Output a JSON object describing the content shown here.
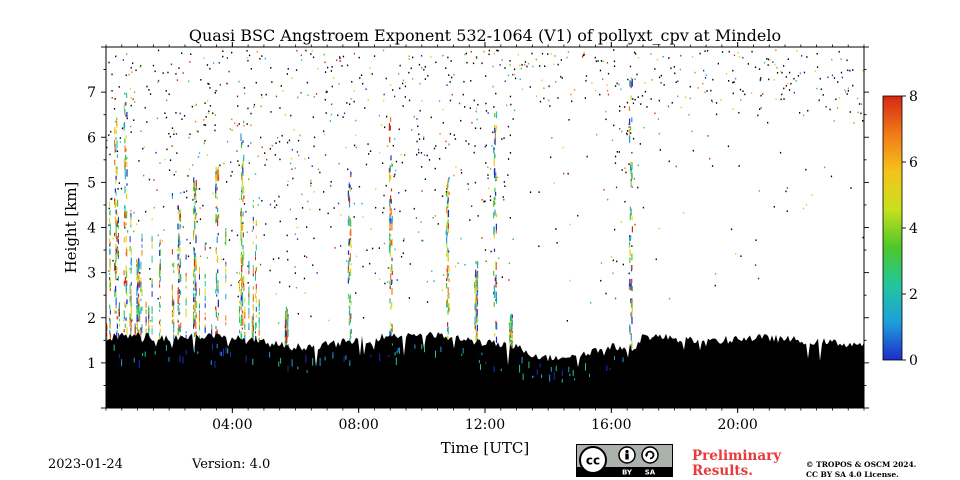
{
  "chart_data": {
    "type": "heatmap",
    "title": "Quasi BSC Angstroem Exponent 532-1064 (V1) of pollyxt_cpv at Mindelo",
    "xlabel": "Time [UTC]",
    "ylabel": "Height [km]",
    "xlim": [
      0,
      24
    ],
    "ylim": [
      0,
      8
    ],
    "x_ticks": [
      4,
      8,
      12,
      16,
      20
    ],
    "x_tick_labels": [
      "04:00",
      "08:00",
      "12:00",
      "16:00",
      "20:00"
    ],
    "y_ticks": [
      1,
      2,
      3,
      4,
      5,
      6,
      7
    ],
    "y_tick_labels": [
      "1",
      "2",
      "3",
      "4",
      "5",
      "6",
      "7"
    ],
    "colorbar": {
      "min": 0,
      "max": 8,
      "ticks": [
        0,
        2,
        4,
        6,
        8
      ],
      "tick_labels": [
        "0",
        "2",
        "4",
        "6",
        "8"
      ],
      "colormap": [
        "#1f2bc8",
        "#1e9fdc",
        "#22c69a",
        "#4ec72a",
        "#c8e01c",
        "#f5c31b",
        "#f07a18",
        "#d62814"
      ]
    },
    "masked_color": "#000000",
    "cloud_base_profile": {
      "time": [
        0.0,
        0.5,
        1.0,
        2.0,
        3.0,
        4.0,
        5.0,
        6.0,
        7.0,
        8.0,
        9.0,
        10.0,
        11.0,
        12.0,
        13.0,
        13.5,
        14.0,
        15.0,
        16.0,
        16.8,
        17.0,
        18.0,
        19.0,
        20.0,
        21.0,
        22.0,
        23.0,
        24.0
      ],
      "height_km": [
        1.55,
        1.6,
        1.6,
        1.55,
        1.6,
        1.55,
        1.45,
        1.35,
        1.4,
        1.5,
        1.6,
        1.65,
        1.55,
        1.45,
        1.35,
        1.2,
        1.1,
        1.2,
        1.35,
        1.35,
        1.6,
        1.55,
        1.45,
        1.55,
        1.55,
        1.5,
        1.45,
        1.4
      ]
    },
    "notable_profiles_utc": [
      0.3,
      0.6,
      1.0,
      2.3,
      2.8,
      3.5,
      4.3,
      5.7,
      7.7,
      9.0,
      10.8,
      11.7,
      12.3,
      12.8,
      16.6
    ]
  },
  "footer": {
    "date": "2023-01-24",
    "version": "Version: 4.0",
    "preliminary": "Preliminary\nResults.",
    "copyright_line1": "© TROPOS & OSCM 2024.",
    "copyright_line2": "CC BY SA 4.0 License.",
    "license_badge": [
      "cc",
      "BY",
      "SA"
    ]
  },
  "colors": {
    "prelim_red": "#e8393d",
    "badge_grey": "#aab2ab"
  }
}
